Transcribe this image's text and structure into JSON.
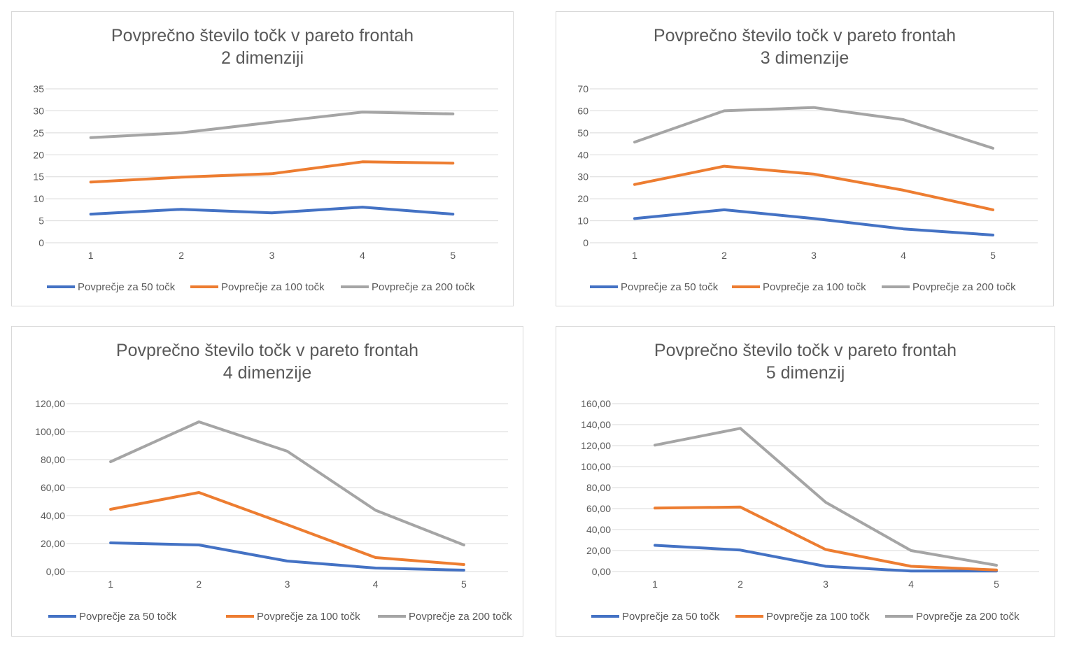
{
  "colors": {
    "series_50": "#4472c4",
    "series_100": "#ed7d31",
    "series_200": "#a5a5a5",
    "grid": "#d9d9d9",
    "text": "#595959"
  },
  "chart_data": [
    {
      "type": "line",
      "title": [
        "Povprečno število točk v pareto frontah",
        "2 dimenziji"
      ],
      "categories": [
        "1",
        "2",
        "3",
        "4",
        "5"
      ],
      "y_ticks": [
        "0",
        "5",
        "10",
        "15",
        "20",
        "25",
        "30",
        "35"
      ],
      "ylim": [
        0,
        35
      ],
      "grid": true,
      "legend": "bottom",
      "series": [
        {
          "name": "Povprečje za 50 točk",
          "values": [
            6.5,
            7.6,
            6.8,
            8.1,
            6.5
          ]
        },
        {
          "name": "Povprečje za 100 točk",
          "values": [
            13.8,
            14.9,
            15.7,
            18.4,
            18.1
          ]
        },
        {
          "name": "Povprečje za 200 točk",
          "values": [
            23.9,
            25.0,
            27.4,
            29.7,
            29.3
          ]
        }
      ]
    },
    {
      "type": "line",
      "title": [
        "Povprečno število točk v pareto frontah",
        "3 dimenzije"
      ],
      "categories": [
        "1",
        "2",
        "3",
        "4",
        "5"
      ],
      "y_ticks": [
        "0",
        "10",
        "20",
        "30",
        "40",
        "50",
        "60",
        "70"
      ],
      "ylim": [
        0,
        70
      ],
      "grid": true,
      "legend": "bottom",
      "series": [
        {
          "name": "Povprečje za 50 točk",
          "values": [
            11.0,
            15.0,
            11.0,
            6.3,
            3.5
          ]
        },
        {
          "name": "Povprečje za 100 točk",
          "values": [
            26.5,
            34.8,
            31.2,
            23.9,
            15.0
          ]
        },
        {
          "name": "Povprečje za 200 točk",
          "values": [
            45.8,
            60.0,
            61.5,
            56.0,
            43.0
          ]
        }
      ]
    },
    {
      "type": "line",
      "title": [
        "Povprečno število točk v pareto frontah",
        "4 dimenzije"
      ],
      "categories": [
        "1",
        "2",
        "3",
        "4",
        "5"
      ],
      "y_ticks": [
        "0,00",
        "20,00",
        "40,00",
        "60,00",
        "80,00",
        "100,00",
        "120,00"
      ],
      "ylim": [
        0,
        120
      ],
      "grid": true,
      "legend": "bottom",
      "series": [
        {
          "name": "Povprečje za 50 točk",
          "values": [
            20.5,
            19.0,
            7.5,
            2.5,
            1.0
          ]
        },
        {
          "name": "Povprečje za 100 točk",
          "values": [
            44.5,
            56.5,
            33.5,
            10.0,
            5.0
          ]
        },
        {
          "name": "Povprečje za 200 točk",
          "values": [
            78.5,
            107.0,
            86.0,
            43.8,
            19.0
          ]
        }
      ]
    },
    {
      "type": "line",
      "title": [
        "Povprečno število točk v pareto frontah",
        "5 dimenzij"
      ],
      "categories": [
        "1",
        "2",
        "3",
        "4",
        "5"
      ],
      "y_ticks": [
        "0,00",
        "20,00",
        "40,00",
        "60,00",
        "80,00",
        "100,00",
        "120,00",
        "140,00",
        "160,00"
      ],
      "ylim": [
        0,
        160
      ],
      "grid": true,
      "legend": "bottom",
      "series": [
        {
          "name": "Povprečje za 50 točk",
          "values": [
            25.0,
            20.5,
            5.0,
            0.5,
            0.5
          ]
        },
        {
          "name": "Povprečje za 100 točk",
          "values": [
            60.5,
            61.5,
            21.0,
            5.0,
            1.5
          ]
        },
        {
          "name": "Povprečje za 200 točk",
          "values": [
            120.5,
            136.5,
            66.0,
            20.0,
            6.0
          ]
        }
      ]
    }
  ]
}
